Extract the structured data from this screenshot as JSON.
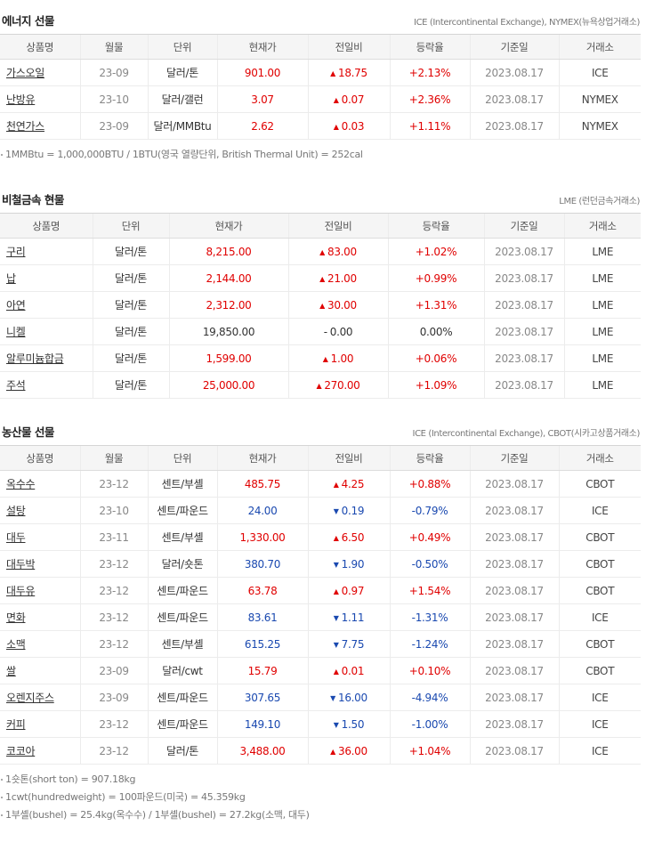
{
  "energy": {
    "title": "에너지 선물",
    "source": "ICE (Intercontinental Exchange), NYMEX(뉴욕상업거래소)",
    "headers": [
      "상품명",
      "월물",
      "단위",
      "현재가",
      "전일비",
      "등락율",
      "기준일",
      "거래소"
    ],
    "rows": [
      {
        "name": "가스오일",
        "month": "23-09",
        "unit": "달러/톤",
        "price": "901.00",
        "change": "18.75",
        "dir": "up",
        "rate": "+2.13%",
        "date": "2023.08.17",
        "exchange": "ICE"
      },
      {
        "name": "난방유",
        "month": "23-10",
        "unit": "달러/갤런",
        "price": "3.07",
        "change": "0.07",
        "dir": "up",
        "rate": "+2.36%",
        "date": "2023.08.17",
        "exchange": "NYMEX"
      },
      {
        "name": "천연가스",
        "month": "23-09",
        "unit": "달러/MMBtu",
        "price": "2.62",
        "change": "0.03",
        "dir": "up",
        "rate": "+1.11%",
        "date": "2023.08.17",
        "exchange": "NYMEX"
      }
    ],
    "notes": [
      "1MMBtu = 1,000,000BTU / 1BTU(영국 열량단위, British Thermal Unit) = 252cal"
    ]
  },
  "metals": {
    "title": "비철금속 현물",
    "source": "LME (런던금속거래소)",
    "headers": [
      "상품명",
      "단위",
      "현재가",
      "전일비",
      "등락율",
      "기준일",
      "거래소"
    ],
    "rows": [
      {
        "name": "구리",
        "unit": "달러/톤",
        "price": "8,215.00",
        "change": "83.00",
        "dir": "up",
        "rate": "+1.02%",
        "date": "2023.08.17",
        "exchange": "LME"
      },
      {
        "name": "납",
        "unit": "달러/톤",
        "price": "2,144.00",
        "change": "21.00",
        "dir": "up",
        "rate": "+0.99%",
        "date": "2023.08.17",
        "exchange": "LME"
      },
      {
        "name": "아연",
        "unit": "달러/톤",
        "price": "2,312.00",
        "change": "30.00",
        "dir": "up",
        "rate": "+1.31%",
        "date": "2023.08.17",
        "exchange": "LME"
      },
      {
        "name": "니켈",
        "unit": "달러/톤",
        "price": "19,850.00",
        "change": "0.00",
        "dir": "flat",
        "rate": "0.00%",
        "date": "2023.08.17",
        "exchange": "LME"
      },
      {
        "name": "알루미늄합금",
        "unit": "달러/톤",
        "price": "1,599.00",
        "change": "1.00",
        "dir": "up",
        "rate": "+0.06%",
        "date": "2023.08.17",
        "exchange": "LME"
      },
      {
        "name": "주석",
        "unit": "달러/톤",
        "price": "25,000.00",
        "change": "270.00",
        "dir": "up",
        "rate": "+1.09%",
        "date": "2023.08.17",
        "exchange": "LME"
      }
    ]
  },
  "agri": {
    "title": "농산물 선물",
    "source": "ICE (Intercontinental Exchange), CBOT(시카고상품거래소)",
    "headers": [
      "상품명",
      "월물",
      "단위",
      "현재가",
      "전일비",
      "등락율",
      "기준일",
      "거래소"
    ],
    "rows": [
      {
        "name": "옥수수",
        "month": "23-12",
        "unit": "센트/부셸",
        "price": "485.75",
        "change": "4.25",
        "dir": "up",
        "rate": "+0.88%",
        "date": "2023.08.17",
        "exchange": "CBOT"
      },
      {
        "name": "설탕",
        "month": "23-10",
        "unit": "센트/파운드",
        "price": "24.00",
        "change": "0.19",
        "dir": "down",
        "rate": "-0.79%",
        "date": "2023.08.17",
        "exchange": "ICE"
      },
      {
        "name": "대두",
        "month": "23-11",
        "unit": "센트/부셸",
        "price": "1,330.00",
        "change": "6.50",
        "dir": "up",
        "rate": "+0.49%",
        "date": "2023.08.17",
        "exchange": "CBOT"
      },
      {
        "name": "대두박",
        "month": "23-12",
        "unit": "달러/숏톤",
        "price": "380.70",
        "change": "1.90",
        "dir": "down",
        "rate": "-0.50%",
        "date": "2023.08.17",
        "exchange": "CBOT"
      },
      {
        "name": "대두유",
        "month": "23-12",
        "unit": "센트/파운드",
        "price": "63.78",
        "change": "0.97",
        "dir": "up",
        "rate": "+1.54%",
        "date": "2023.08.17",
        "exchange": "CBOT"
      },
      {
        "name": "면화",
        "month": "23-12",
        "unit": "센트/파운드",
        "price": "83.61",
        "change": "1.11",
        "dir": "down",
        "rate": "-1.31%",
        "date": "2023.08.17",
        "exchange": "ICE"
      },
      {
        "name": "소맥",
        "month": "23-12",
        "unit": "센트/부셸",
        "price": "615.25",
        "change": "7.75",
        "dir": "down",
        "rate": "-1.24%",
        "date": "2023.08.17",
        "exchange": "CBOT"
      },
      {
        "name": "쌀",
        "month": "23-09",
        "unit": "달러/cwt",
        "price": "15.79",
        "change": "0.01",
        "dir": "up",
        "rate": "+0.10%",
        "date": "2023.08.17",
        "exchange": "CBOT"
      },
      {
        "name": "오렌지주스",
        "month": "23-09",
        "unit": "센트/파운드",
        "price": "307.65",
        "change": "16.00",
        "dir": "down",
        "rate": "-4.94%",
        "date": "2023.08.17",
        "exchange": "ICE"
      },
      {
        "name": "커피",
        "month": "23-12",
        "unit": "센트/파운드",
        "price": "149.10",
        "change": "1.50",
        "dir": "down",
        "rate": "-1.00%",
        "date": "2023.08.17",
        "exchange": "ICE"
      },
      {
        "name": "코코아",
        "month": "23-12",
        "unit": "달러/톤",
        "price": "3,488.00",
        "change": "36.00",
        "dir": "up",
        "rate": "+1.04%",
        "date": "2023.08.17",
        "exchange": "ICE"
      }
    ],
    "notes": [
      "1숏톤(short ton) = 907.18kg",
      "1cwt(hundredweight) = 100파운드(미국) = 45.359kg",
      "1부셸(bushel) = 25.4kg(옥수수) / 1부셸(bushel) = 27.2kg(소맥, 대두)"
    ]
  },
  "symbols": {
    "up": "▲",
    "down": "▼",
    "flat": "-"
  },
  "colors": {
    "up": "#e00000",
    "down": "#1a49b0",
    "flat": "#333333"
  }
}
